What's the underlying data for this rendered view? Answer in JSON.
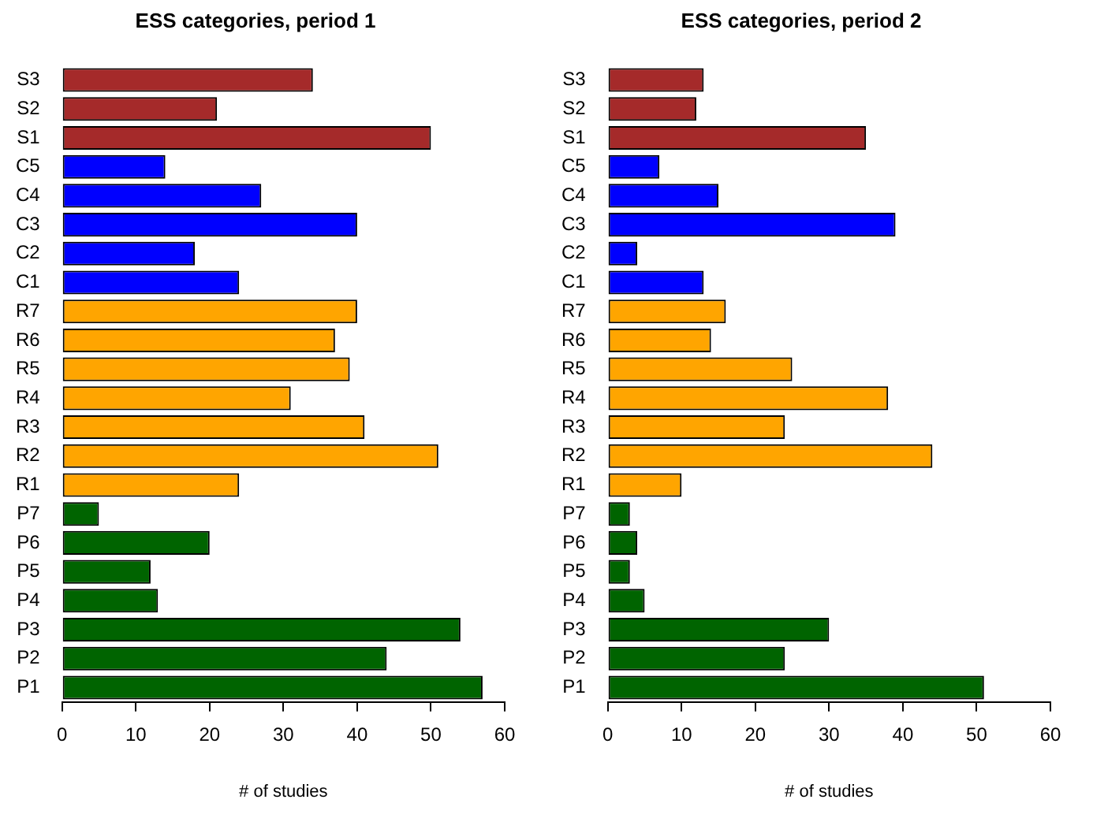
{
  "chart_data": [
    {
      "type": "bar",
      "orientation": "horizontal",
      "title": "ESS categories, period 1",
      "xlabel": "# of studies",
      "categories": [
        "S3",
        "S2",
        "S1",
        "C5",
        "C4",
        "C3",
        "C2",
        "C1",
        "R7",
        "R6",
        "R5",
        "R4",
        "R3",
        "R2",
        "R1",
        "P7",
        "P6",
        "P5",
        "P4",
        "P3",
        "P2",
        "P1"
      ],
      "values": [
        34,
        21,
        50,
        14,
        27,
        40,
        18,
        24,
        40,
        37,
        39,
        31,
        41,
        51,
        24,
        5,
        20,
        12,
        13,
        54,
        44,
        57
      ],
      "colors": [
        "#a52a2a",
        "#a52a2a",
        "#a52a2a",
        "#0000ff",
        "#0000ff",
        "#0000ff",
        "#0000ff",
        "#0000ff",
        "#ffa500",
        "#ffa500",
        "#ffa500",
        "#ffa500",
        "#ffa500",
        "#ffa500",
        "#ffa500",
        "#006400",
        "#006400",
        "#006400",
        "#006400",
        "#006400",
        "#006400",
        "#006400"
      ],
      "xlim": [
        0,
        60
      ],
      "xticks": [
        0,
        10,
        20,
        30,
        40,
        50,
        60
      ],
      "grid": false,
      "legend": false
    },
    {
      "type": "bar",
      "orientation": "horizontal",
      "title": "ESS categories, period 2",
      "xlabel": "# of studies",
      "categories": [
        "S3",
        "S2",
        "S1",
        "C5",
        "C4",
        "C3",
        "C2",
        "C1",
        "R7",
        "R6",
        "R5",
        "R4",
        "R3",
        "R2",
        "R1",
        "P7",
        "P6",
        "P5",
        "P4",
        "P3",
        "P2",
        "P1"
      ],
      "values": [
        13,
        12,
        35,
        7,
        15,
        39,
        4,
        13,
        16,
        14,
        25,
        38,
        24,
        44,
        10,
        3,
        4,
        3,
        5,
        30,
        24,
        51
      ],
      "colors": [
        "#a52a2a",
        "#a52a2a",
        "#a52a2a",
        "#0000ff",
        "#0000ff",
        "#0000ff",
        "#0000ff",
        "#0000ff",
        "#ffa500",
        "#ffa500",
        "#ffa500",
        "#ffa500",
        "#ffa500",
        "#ffa500",
        "#ffa500",
        "#006400",
        "#006400",
        "#006400",
        "#006400",
        "#006400",
        "#006400",
        "#006400"
      ],
      "xlim": [
        0,
        60
      ],
      "xticks": [
        0,
        10,
        20,
        30,
        40,
        50,
        60
      ],
      "grid": false,
      "legend": false
    }
  ]
}
